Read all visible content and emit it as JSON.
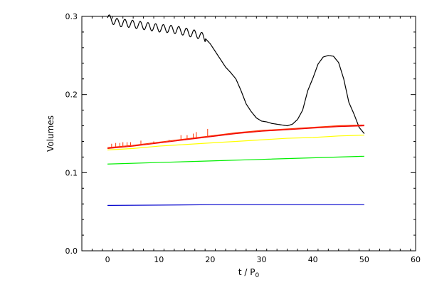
{
  "chart_data": {
    "type": "line",
    "xlabel": "t / P",
    "xlabel_sub": "0",
    "ylabel": "Volumes",
    "xlim": [
      -5,
      60
    ],
    "ylim": [
      0,
      0.3
    ],
    "x_ticks": [
      0,
      10,
      20,
      30,
      40,
      50,
      60
    ],
    "x_tick_labels": [
      "0",
      "10",
      "20",
      "30",
      "40",
      "50",
      "60"
    ],
    "y_ticks": [
      0,
      0.1,
      0.2,
      0.3
    ],
    "y_tick_labels": [
      "0.0",
      "0.1",
      "0.2",
      "0.3"
    ],
    "x_minor_step": 2,
    "y_minor_step": 0.02,
    "grid": false,
    "legend": "none",
    "series": [
      {
        "color": "#000000",
        "x": [
          0,
          2,
          4,
          6,
          8,
          10,
          12,
          14,
          16,
          18,
          19,
          20,
          21,
          22,
          23,
          24,
          25,
          26,
          27,
          28,
          29,
          30,
          31,
          32,
          33,
          34,
          35,
          36,
          37,
          38,
          39,
          40,
          41,
          42,
          43,
          44,
          45,
          46,
          47,
          48,
          49,
          50
        ],
        "y": [
          0.298,
          0.292,
          0.291,
          0.289,
          0.287,
          0.285,
          0.284,
          0.282,
          0.279,
          0.276,
          0.272,
          0.265,
          0.255,
          0.245,
          0.235,
          0.228,
          0.22,
          0.205,
          0.188,
          0.178,
          0.17,
          0.166,
          0.165,
          0.163,
          0.162,
          0.161,
          0.16,
          0.162,
          0.168,
          0.18,
          0.205,
          0.221,
          0.239,
          0.248,
          0.25,
          0.249,
          0.241,
          0.22,
          0.19,
          0.175,
          0.158,
          0.15
        ],
        "ripple": {
          "amplitude": 0.005,
          "period": 1.5,
          "x_from": 0,
          "x_to": 19
        }
      },
      {
        "color": "#ff3300",
        "x": [
          0,
          5,
          10,
          15,
          20,
          25,
          30,
          35,
          40,
          45,
          50
        ],
        "y": [
          0.132,
          0.135,
          0.139,
          0.143,
          0.147,
          0.151,
          0.154,
          0.156,
          0.158,
          0.16,
          0.161
        ],
        "spikes": [
          {
            "x": 0.8,
            "y": 0.137
          },
          {
            "x": 1.6,
            "y": 0.138
          },
          {
            "x": 2.4,
            "y": 0.138
          },
          {
            "x": 3.0,
            "y": 0.139
          },
          {
            "x": 3.8,
            "y": 0.139
          },
          {
            "x": 4.5,
            "y": 0.139
          },
          {
            "x": 6.5,
            "y": 0.141
          },
          {
            "x": 9.0,
            "y": 0.14
          },
          {
            "x": 12.0,
            "y": 0.142
          },
          {
            "x": 14.3,
            "y": 0.148
          },
          {
            "x": 15.5,
            "y": 0.148
          },
          {
            "x": 16.7,
            "y": 0.15
          },
          {
            "x": 17.3,
            "y": 0.152
          },
          {
            "x": 19.5,
            "y": 0.156
          }
        ]
      },
      {
        "color": "#ee0000",
        "x": [
          0,
          5,
          10,
          15,
          20,
          25,
          30,
          35,
          40,
          45,
          50
        ],
        "y": [
          0.131,
          0.134,
          0.138,
          0.142,
          0.146,
          0.15,
          0.153,
          0.155,
          0.157,
          0.159,
          0.16
        ]
      },
      {
        "color": "#ffff00",
        "x": [
          0,
          5,
          10,
          15,
          20,
          25,
          30,
          35,
          40,
          45,
          50
        ],
        "y": [
          0.129,
          0.131,
          0.134,
          0.136,
          0.138,
          0.14,
          0.142,
          0.144,
          0.145,
          0.147,
          0.148
        ]
      },
      {
        "color": "#00ee00",
        "x": [
          0,
          10,
          20,
          30,
          40,
          50
        ],
        "y": [
          0.111,
          0.113,
          0.115,
          0.117,
          0.119,
          0.121
        ]
      },
      {
        "color": "#0000cc",
        "x": [
          0,
          10,
          20,
          30,
          40,
          50
        ],
        "y": [
          0.058,
          0.0585,
          0.059,
          0.059,
          0.059,
          0.059
        ]
      }
    ]
  }
}
